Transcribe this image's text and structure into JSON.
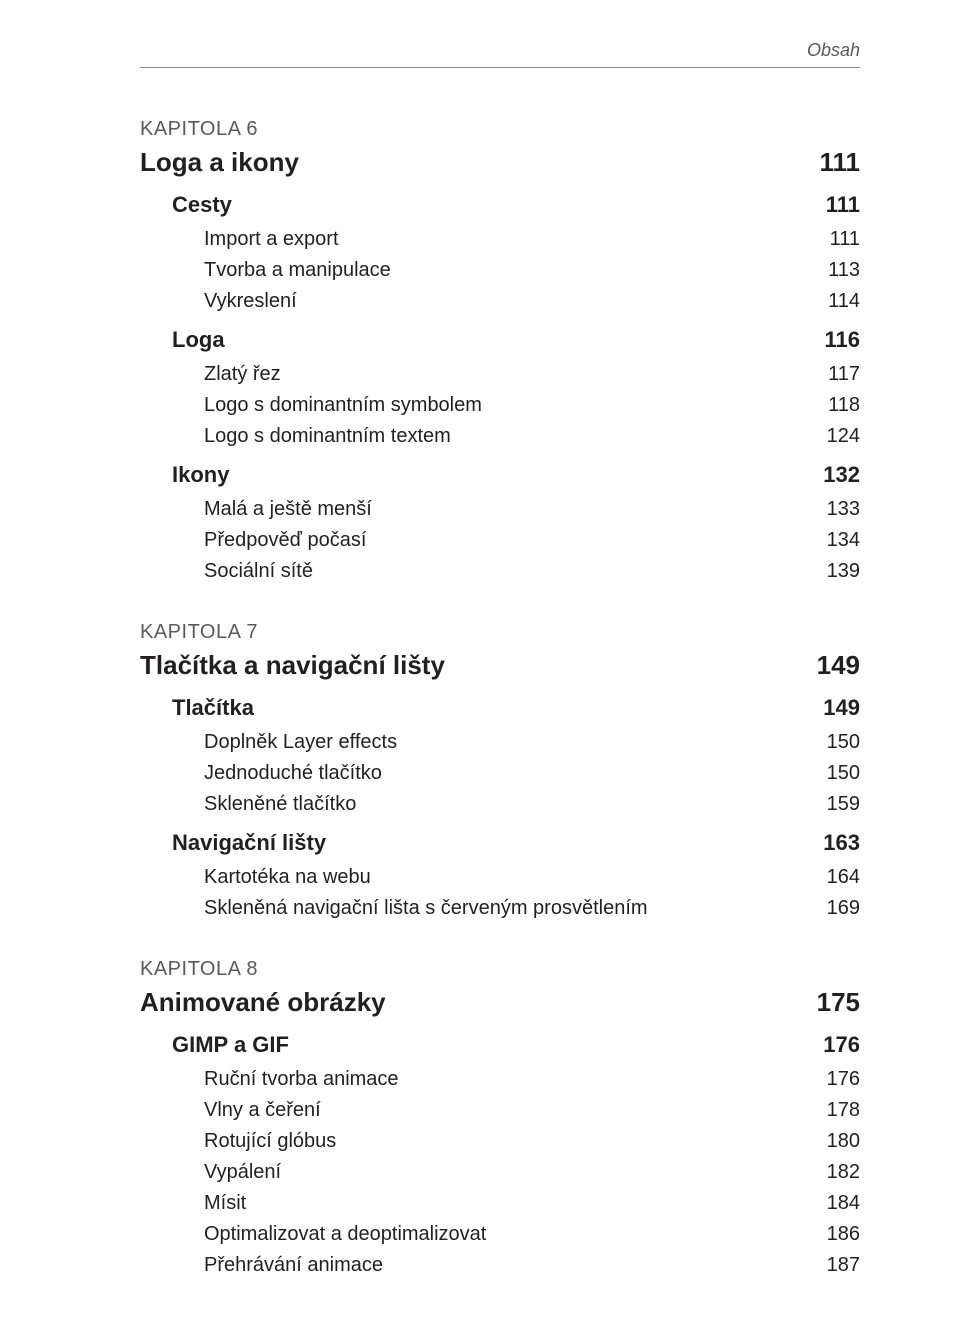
{
  "header": {
    "label": "Obsah"
  },
  "chapters": [
    {
      "kapitola": "KAPITOLA 6",
      "title": "Loga a ikony",
      "page": "111",
      "sections": [
        {
          "title": "Cesty",
          "page": "111",
          "entries": [
            {
              "title": "Import a export",
              "page": "111"
            },
            {
              "title": "Tvorba a manipulace",
              "page": "113"
            },
            {
              "title": "Vykreslení",
              "page": "114"
            }
          ]
        },
        {
          "title": "Loga",
          "page": "116",
          "entries": [
            {
              "title": "Zlatý řez",
              "page": "117"
            },
            {
              "title": "Logo s dominantním symbolem",
              "page": "118"
            },
            {
              "title": "Logo s dominantním textem",
              "page": "124"
            }
          ]
        },
        {
          "title": "Ikony",
          "page": "132",
          "entries": [
            {
              "title": "Malá a ještě menší",
              "page": "133"
            },
            {
              "title": "Předpověď počasí",
              "page": "134"
            },
            {
              "title": "Sociální sítě",
              "page": "139"
            }
          ]
        }
      ]
    },
    {
      "kapitola": "KAPITOLA 7",
      "title": "Tlačítka a navigační lišty",
      "page": "149",
      "sections": [
        {
          "title": "Tlačítka",
          "page": "149",
          "entries": [
            {
              "title": "Doplněk Layer effects",
              "page": "150"
            },
            {
              "title": "Jednoduché tlačítko",
              "page": "150"
            },
            {
              "title": "Skleněné tlačítko",
              "page": "159"
            }
          ]
        },
        {
          "title": "Navigační lišty",
          "page": "163",
          "entries": [
            {
              "title": "Kartotéka na webu",
              "page": "164"
            },
            {
              "title": "Skleněná navigační lišta s červeným prosvětlením",
              "page": "169"
            }
          ]
        }
      ]
    },
    {
      "kapitola": "KAPITOLA 8",
      "title": "Animované obrázky",
      "page": "175",
      "sections": [
        {
          "title": "GIMP a GIF",
          "page": "176",
          "entries": [
            {
              "title": "Ruční tvorba animace",
              "page": "176"
            },
            {
              "title": "Vlny a čeření",
              "page": "178"
            },
            {
              "title": "Rotující glóbus",
              "page": "180"
            },
            {
              "title": "Vypálení",
              "page": "182"
            },
            {
              "title": "Mísit",
              "page": "184"
            },
            {
              "title": "Optimalizovat a deoptimalizovat",
              "page": "186"
            },
            {
              "title": "Přehrávání animace",
              "page": "187"
            }
          ]
        }
      ]
    }
  ]
}
